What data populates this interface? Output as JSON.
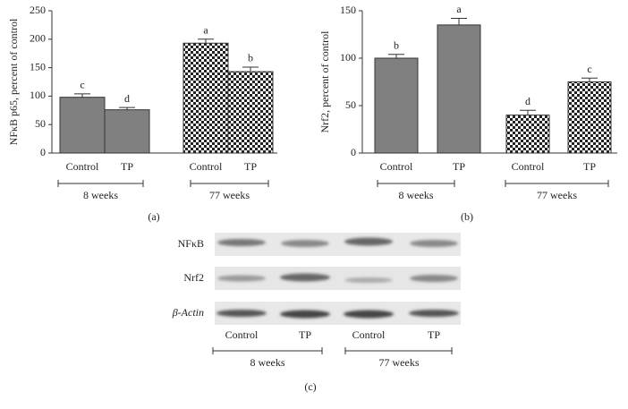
{
  "chart_data": [
    {
      "type": "bar",
      "panel": "(a)",
      "ylabel": "NFκB p65, percent of control",
      "categories": [
        "Control",
        "TP",
        "Control",
        "TP"
      ],
      "groups": [
        "8 weeks",
        "77 weeks"
      ],
      "values": [
        98,
        76,
        193,
        143
      ],
      "errors": [
        6,
        4,
        7,
        8
      ],
      "letters": [
        "c",
        "d",
        "a",
        "b"
      ],
      "fills": [
        "solid",
        "solid",
        "checker",
        "checker"
      ],
      "color": "#808080",
      "ylim": [
        0,
        250
      ],
      "yticks": [
        0,
        50,
        100,
        150,
        200,
        250
      ]
    },
    {
      "type": "bar",
      "panel": "(b)",
      "ylabel": "Nrf2, percent of control",
      "categories": [
        "Control",
        "TP",
        "Control",
        "TP"
      ],
      "groups": [
        "8 weeks",
        "77 weeks"
      ],
      "values": [
        100,
        135,
        40,
        75
      ],
      "errors": [
        4,
        7,
        5,
        4
      ],
      "letters": [
        "b",
        "a",
        "d",
        "c"
      ],
      "fills": [
        "solid",
        "solid",
        "checker",
        "checker"
      ],
      "color": "#808080",
      "ylim": [
        0,
        150
      ],
      "yticks": [
        0,
        50,
        100,
        150
      ]
    }
  ],
  "blot": {
    "rows": [
      "NFκB",
      "Nrf2",
      "β-Actin"
    ],
    "lanes": [
      "Control",
      "TP",
      "Control",
      "TP"
    ],
    "groups": [
      "8 weeks",
      "77 weeks"
    ],
    "panel": "(c)"
  }
}
